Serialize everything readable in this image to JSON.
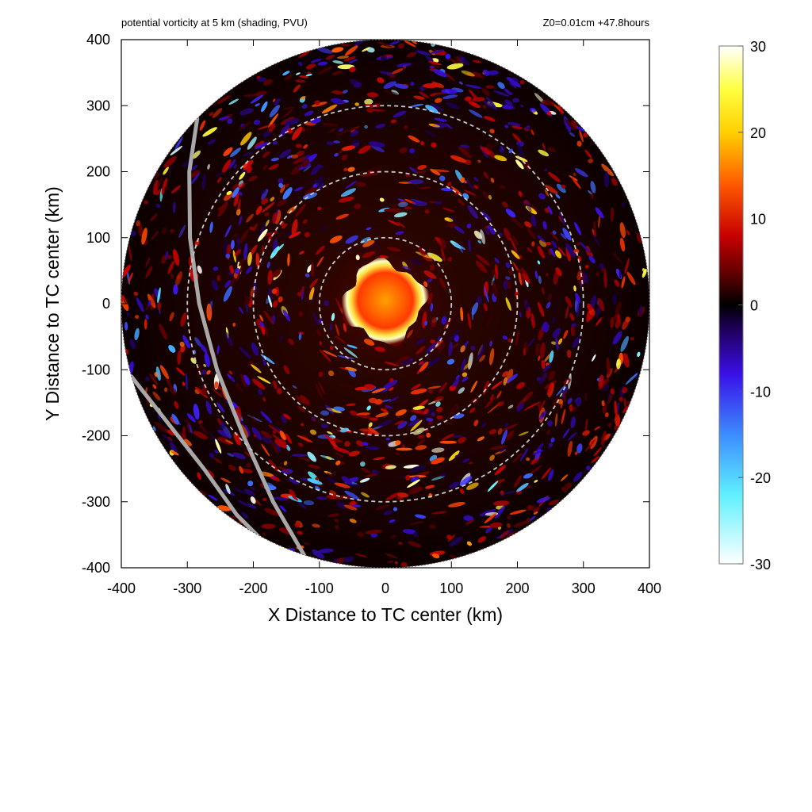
{
  "header": {
    "left": "potential vorticity at 5 km (shading, PVU)",
    "right": "Z0=0.01cm  +47.8hours"
  },
  "chart_data": {
    "type": "heatmap",
    "title": "potential vorticity at 5 km (shading, PVU)",
    "subtitle": "Z0=0.01cm  +47.8hours",
    "xlabel": "X Distance to TC center (km)",
    "ylabel": "Y Distance to TC center (km)",
    "xlim": [
      -400,
      400
    ],
    "ylim": [
      -400,
      400
    ],
    "x_ticks": [
      -400,
      -300,
      -200,
      -100,
      0,
      100,
      200,
      300,
      400
    ],
    "y_ticks": [
      -400,
      -300,
      -200,
      -100,
      0,
      100,
      200,
      300,
      400
    ],
    "x_tick_labels": [
      "-400",
      "-300",
      "-200",
      "-100",
      "0",
      "100",
      "200",
      "300",
      "400"
    ],
    "y_tick_labels": [
      "-400",
      "-300",
      "-200",
      "-100",
      "0",
      "100",
      "200",
      "300",
      "400"
    ],
    "domain_radius_km": 400,
    "range_rings_km": [
      100,
      200,
      300
    ],
    "colorbar": {
      "min": -30,
      "max": 30,
      "ticks": [
        30,
        20,
        10,
        0,
        -10,
        -20,
        -30
      ],
      "tick_labels": [
        "30",
        "20",
        "10",
        "0",
        "-10",
        "-20",
        "-30"
      ],
      "stops": [
        {
          "value": -30,
          "color": "#ffffff"
        },
        {
          "value": -22,
          "color": "#5ff0ff"
        },
        {
          "value": -15,
          "color": "#3c8cff"
        },
        {
          "value": -8,
          "color": "#3a10e8"
        },
        {
          "value": -3,
          "color": "#200060"
        },
        {
          "value": 0,
          "color": "#000000"
        },
        {
          "value": 3,
          "color": "#500000"
        },
        {
          "value": 8,
          "color": "#c80000"
        },
        {
          "value": 14,
          "color": "#ff5a00"
        },
        {
          "value": 20,
          "color": "#ffd000"
        },
        {
          "value": 25,
          "color": "#ffff40"
        },
        {
          "value": 30,
          "color": "#ffffff"
        }
      ]
    },
    "inner_core": {
      "description_free_values": {
        "max_pv": 30,
        "radius_km": 60
      }
    },
    "colors": {
      "background_field": "#1a0200",
      "ring": "#c8c8c8",
      "track": "#a0a0a0"
    }
  }
}
